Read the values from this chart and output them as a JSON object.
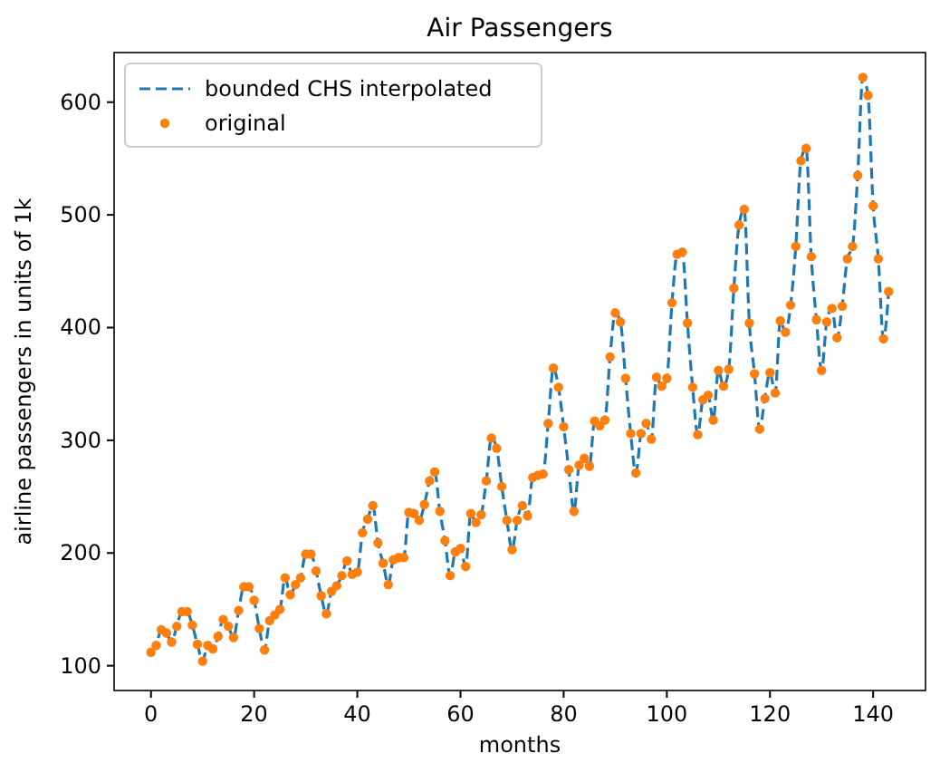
{
  "chart_data": {
    "type": "line",
    "title": "Air Passengers",
    "xlabel": "months",
    "ylabel": "airline passengers in units of 1k",
    "x": [
      0,
      1,
      2,
      3,
      4,
      5,
      6,
      7,
      8,
      9,
      10,
      11,
      12,
      13,
      14,
      15,
      16,
      17,
      18,
      19,
      20,
      21,
      22,
      23,
      24,
      25,
      26,
      27,
      28,
      29,
      30,
      31,
      32,
      33,
      34,
      35,
      36,
      37,
      38,
      39,
      40,
      41,
      42,
      43,
      44,
      45,
      46,
      47,
      48,
      49,
      50,
      51,
      52,
      53,
      54,
      55,
      56,
      57,
      58,
      59,
      60,
      61,
      62,
      63,
      64,
      65,
      66,
      67,
      68,
      69,
      70,
      71,
      72,
      73,
      74,
      75,
      76,
      77,
      78,
      79,
      80,
      81,
      82,
      83,
      84,
      85,
      86,
      87,
      88,
      89,
      90,
      91,
      92,
      93,
      94,
      95,
      96,
      97,
      98,
      99,
      100,
      101,
      102,
      103,
      104,
      105,
      106,
      107,
      108,
      109,
      110,
      111,
      112,
      113,
      114,
      115,
      116,
      117,
      118,
      119,
      120,
      121,
      122,
      123,
      124,
      125,
      126,
      127,
      128,
      129,
      130,
      131,
      132,
      133,
      134,
      135,
      136,
      137,
      138,
      139,
      140,
      141,
      142,
      143
    ],
    "series": [
      {
        "name": "bounded CHS interpolated",
        "type": "line",
        "color": "#1f77b4",
        "line_style": "dashed",
        "marker": "none",
        "values": [
          112,
          118,
          132,
          129,
          121,
          135,
          148,
          148,
          136,
          119,
          104,
          118,
          115,
          126,
          141,
          135,
          125,
          149,
          170,
          170,
          158,
          133,
          114,
          140,
          145,
          150,
          178,
          163,
          172,
          178,
          199,
          199,
          184,
          162,
          146,
          166,
          171,
          180,
          193,
          181,
          183,
          218,
          230,
          242,
          209,
          191,
          172,
          194,
          196,
          196,
          236,
          235,
          229,
          243,
          264,
          272,
          237,
          211,
          180,
          201,
          204,
          188,
          235,
          227,
          234,
          264,
          302,
          293,
          259,
          229,
          203,
          229,
          242,
          233,
          267,
          269,
          270,
          315,
          364,
          347,
          312,
          274,
          237,
          278,
          284,
          277,
          317,
          313,
          318,
          374,
          413,
          405,
          355,
          306,
          271,
          306,
          315,
          301,
          356,
          348,
          355,
          422,
          465,
          467,
          404,
          347,
          305,
          336,
          340,
          318,
          362,
          348,
          363,
          435,
          491,
          505,
          404,
          359,
          310,
          337,
          360,
          342,
          406,
          396,
          420,
          472,
          548,
          559,
          463,
          407,
          362,
          405,
          417,
          391,
          419,
          461,
          472,
          535,
          622,
          606,
          508,
          461,
          390,
          432
        ]
      },
      {
        "name": "original",
        "type": "scatter",
        "color": "#ff7f0e",
        "marker": "circle",
        "values": [
          112,
          118,
          132,
          129,
          121,
          135,
          148,
          148,
          136,
          119,
          104,
          118,
          115,
          126,
          141,
          135,
          125,
          149,
          170,
          170,
          158,
          133,
          114,
          140,
          145,
          150,
          178,
          163,
          172,
          178,
          199,
          199,
          184,
          162,
          146,
          166,
          171,
          180,
          193,
          181,
          183,
          218,
          230,
          242,
          209,
          191,
          172,
          194,
          196,
          196,
          236,
          235,
          229,
          243,
          264,
          272,
          237,
          211,
          180,
          201,
          204,
          188,
          235,
          227,
          234,
          264,
          302,
          293,
          259,
          229,
          203,
          229,
          242,
          233,
          267,
          269,
          270,
          315,
          364,
          347,
          312,
          274,
          237,
          278,
          284,
          277,
          317,
          313,
          318,
          374,
          413,
          405,
          355,
          306,
          271,
          306,
          315,
          301,
          356,
          348,
          355,
          422,
          465,
          467,
          404,
          347,
          305,
          336,
          340,
          318,
          362,
          348,
          363,
          435,
          491,
          505,
          404,
          359,
          310,
          337,
          360,
          342,
          406,
          396,
          420,
          472,
          548,
          559,
          463,
          407,
          362,
          405,
          417,
          391,
          419,
          461,
          472,
          535,
          622,
          606,
          508,
          461,
          390,
          432
        ]
      }
    ],
    "xlim": [
      -7.15,
      150.15
    ],
    "xticks": [
      0,
      20,
      40,
      60,
      80,
      100,
      120,
      140
    ],
    "ylim": [
      78,
      644
    ],
    "yticks": [
      100,
      200,
      300,
      400,
      500,
      600
    ],
    "legend": "top left",
    "grid": false
  }
}
